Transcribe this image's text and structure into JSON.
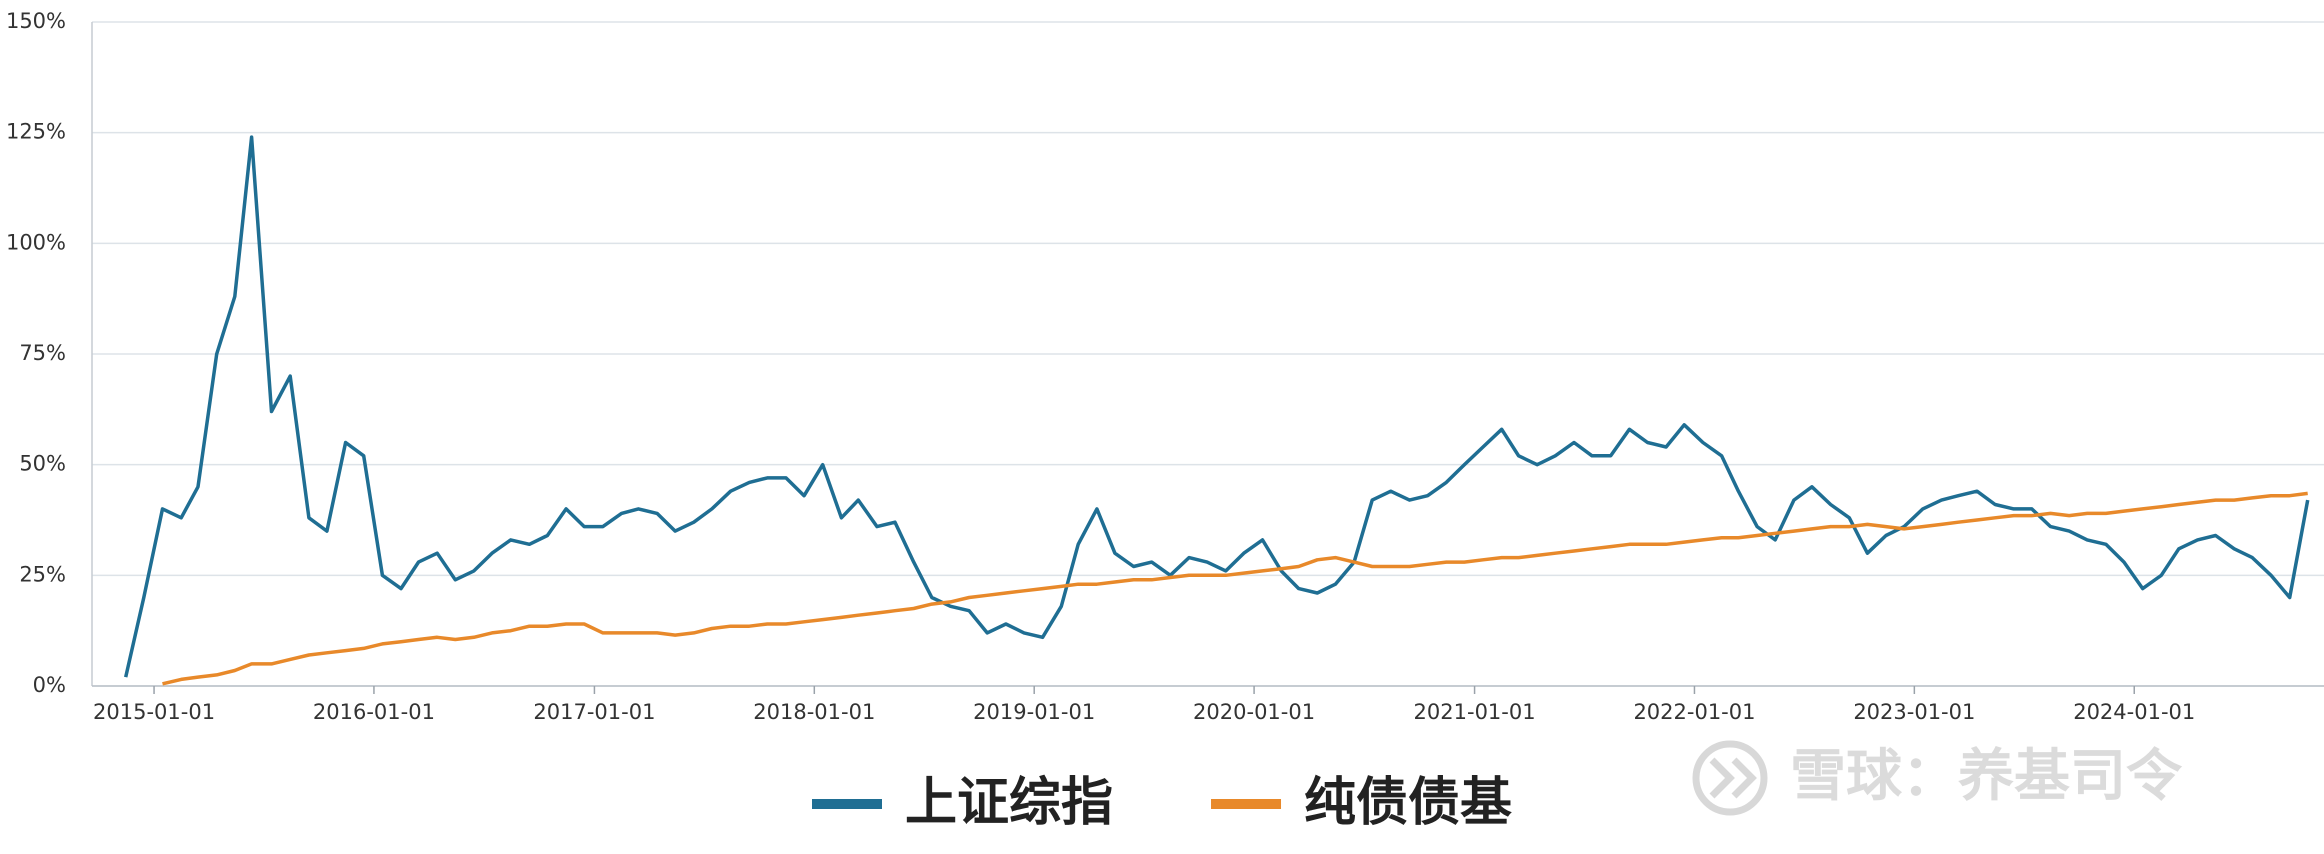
{
  "chart_data": {
    "type": "line",
    "x": [
      "2014-11-15",
      "2014-12-15",
      "2015-01-15",
      "2015-02-15",
      "2015-03-15",
      "2015-04-15",
      "2015-05-15",
      "2015-06-12",
      "2015-07-15",
      "2015-08-15",
      "2015-09-15",
      "2015-10-15",
      "2015-11-15",
      "2015-12-15",
      "2016-01-15",
      "2016-02-15",
      "2016-03-15",
      "2016-04-15",
      "2016-05-15",
      "2016-06-15",
      "2016-07-15",
      "2016-08-15",
      "2016-09-15",
      "2016-10-15",
      "2016-11-15",
      "2016-12-15",
      "2017-01-15",
      "2017-02-15",
      "2017-03-15",
      "2017-04-15",
      "2017-05-15",
      "2017-06-15",
      "2017-07-15",
      "2017-08-15",
      "2017-09-15",
      "2017-10-15",
      "2017-11-15",
      "2017-12-15",
      "2018-01-15",
      "2018-02-15",
      "2018-03-15",
      "2018-04-15",
      "2018-05-15",
      "2018-06-15",
      "2018-07-15",
      "2018-08-15",
      "2018-09-15",
      "2018-10-15",
      "2018-11-15",
      "2018-12-15",
      "2019-01-15",
      "2019-02-15",
      "2019-03-15",
      "2019-04-15",
      "2019-05-15",
      "2019-06-15",
      "2019-07-15",
      "2019-08-15",
      "2019-09-15",
      "2019-10-15",
      "2019-11-15",
      "2019-12-15",
      "2020-01-15",
      "2020-02-15",
      "2020-03-15",
      "2020-04-15",
      "2020-05-15",
      "2020-06-15",
      "2020-07-15",
      "2020-08-15",
      "2020-09-15",
      "2020-10-15",
      "2020-11-15",
      "2020-12-15",
      "2021-01-15",
      "2021-02-15",
      "2021-03-15",
      "2021-04-15",
      "2021-05-15",
      "2021-06-15",
      "2021-07-15",
      "2021-08-15",
      "2021-09-15",
      "2021-10-15",
      "2021-11-15",
      "2021-12-15",
      "2022-01-15",
      "2022-02-15",
      "2022-03-15",
      "2022-04-15",
      "2022-05-15",
      "2022-06-15",
      "2022-07-15",
      "2022-08-15",
      "2022-09-15",
      "2022-10-15",
      "2022-11-15",
      "2022-12-15",
      "2023-01-15",
      "2023-02-15",
      "2023-03-15",
      "2023-04-15",
      "2023-05-15",
      "2023-06-15",
      "2023-07-15",
      "2023-08-15",
      "2023-09-15",
      "2023-10-15",
      "2023-11-15",
      "2023-12-15",
      "2024-01-15",
      "2024-02-15",
      "2024-03-15",
      "2024-04-15",
      "2024-05-15",
      "2024-06-15",
      "2024-07-15",
      "2024-08-15",
      "2024-09-15",
      "2024-10-15"
    ],
    "series": [
      {
        "name": "上证综指",
        "color": "#1f6e93",
        "values": [
          2,
          20,
          40,
          38,
          45,
          75,
          88,
          124,
          62,
          70,
          38,
          35,
          55,
          52,
          25,
          22,
          28,
          30,
          24,
          26,
          30,
          33,
          32,
          34,
          40,
          36,
          36,
          39,
          40,
          39,
          35,
          37,
          40,
          44,
          46,
          47,
          47,
          43,
          50,
          38,
          42,
          36,
          37,
          28,
          20,
          18,
          17,
          12,
          14,
          12,
          11,
          18,
          32,
          40,
          30,
          27,
          28,
          25,
          29,
          28,
          26,
          30,
          33,
          26,
          22,
          21,
          23,
          28,
          42,
          44,
          42,
          43,
          46,
          50,
          54,
          58,
          52,
          50,
          52,
          55,
          52,
          52,
          58,
          55,
          54,
          59,
          55,
          52,
          44,
          36,
          33,
          42,
          45,
          41,
          38,
          30,
          34,
          36,
          40,
          42,
          43,
          44,
          41,
          40,
          40,
          36,
          35,
          33,
          32,
          28,
          22,
          25,
          31,
          33,
          34,
          31,
          29,
          25,
          20,
          42
        ]
      },
      {
        "name": "纯债债基",
        "color": "#e8892a",
        "values": [
          null,
          null,
          0.5,
          1.5,
          2,
          2.5,
          3.5,
          5,
          5,
          6,
          7,
          7.5,
          8,
          8.5,
          9.5,
          10,
          10.5,
          11,
          10.5,
          11,
          12,
          12.5,
          13.5,
          13.5,
          14,
          14,
          12,
          12,
          12,
          12,
          11.5,
          12,
          13,
          13.5,
          13.5,
          14,
          14,
          14.5,
          15,
          15.5,
          16,
          16.5,
          17,
          17.5,
          18.5,
          19,
          20,
          20.5,
          21,
          21.5,
          22,
          22.5,
          23,
          23,
          23.5,
          24,
          24,
          24.5,
          25,
          25,
          25,
          25.5,
          26,
          26.5,
          27,
          28.5,
          29,
          28,
          27,
          27,
          27,
          27.5,
          28,
          28,
          28.5,
          29,
          29,
          29.5,
          30,
          30.5,
          31,
          31.5,
          32,
          32,
          32,
          32.5,
          33,
          33.5,
          33.5,
          34,
          34.5,
          35,
          35.5,
          36,
          36,
          36.5,
          36,
          35.5,
          36,
          36.5,
          37,
          37.5,
          38,
          38.5,
          38.5,
          39,
          38.5,
          39,
          39,
          39.5,
          40,
          40.5,
          41,
          41.5,
          42,
          42,
          42.5,
          43,
          43,
          43.5
        ]
      }
    ],
    "xlim": [
      "2014-09-20",
      "2024-11-11"
    ],
    "xticks": [
      "2015-01-01",
      "2016-01-01",
      "2017-01-01",
      "2018-01-01",
      "2019-01-01",
      "2020-01-01",
      "2021-01-01",
      "2022-01-01",
      "2023-01-01",
      "2024-01-01"
    ],
    "ylim": [
      0,
      150
    ],
    "yticks": [
      {
        "value": 0,
        "label": "0%"
      },
      {
        "value": 25,
        "label": "25%"
      },
      {
        "value": 50,
        "label": "50%"
      },
      {
        "value": 75,
        "label": "75%"
      },
      {
        "value": 100,
        "label": "100%"
      },
      {
        "value": 125,
        "label": "125%"
      },
      {
        "value": 150,
        "label": "150%"
      }
    ],
    "grid": true,
    "legend": "bottom",
    "watermark": "雪球：养基司令"
  }
}
